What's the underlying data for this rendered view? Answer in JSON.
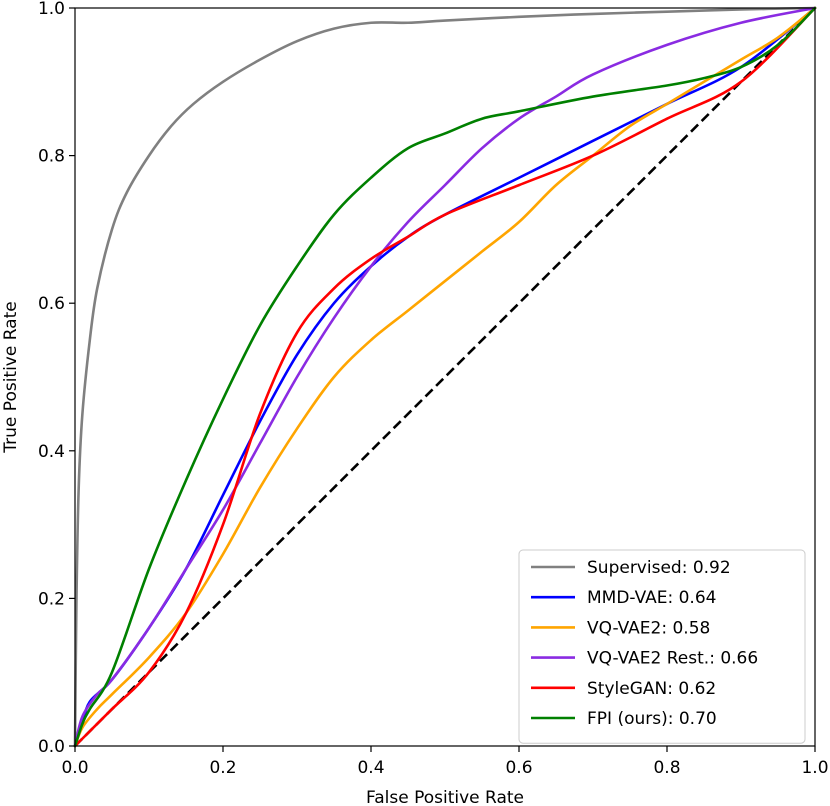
{
  "chart_data": {
    "type": "line",
    "xlabel": "False Positive Rate",
    "ylabel": "True Positive Rate",
    "xlim": [
      0.0,
      1.0
    ],
    "ylim": [
      0.0,
      1.0
    ],
    "x_ticks": [
      "0.0",
      "0.2",
      "0.4",
      "0.6",
      "0.8",
      "1.0"
    ],
    "y_ticks": [
      "0.0",
      "0.2",
      "0.4",
      "0.6",
      "0.8",
      "1.0"
    ],
    "grid": false,
    "legend_position": "bottom-right",
    "series": [
      {
        "name": "Supervised: 0.92",
        "color": "#808080",
        "x": [
          0.0,
          0.002,
          0.005,
          0.01,
          0.02,
          0.03,
          0.05,
          0.07,
          0.1,
          0.13,
          0.16,
          0.2,
          0.25,
          0.3,
          0.35,
          0.4,
          0.45,
          0.5,
          0.6,
          0.7,
          0.8,
          0.9,
          1.0
        ],
        "y": [
          0.0,
          0.2,
          0.35,
          0.45,
          0.55,
          0.62,
          0.7,
          0.75,
          0.8,
          0.84,
          0.87,
          0.9,
          0.93,
          0.955,
          0.972,
          0.98,
          0.98,
          0.983,
          0.988,
          0.992,
          0.995,
          0.998,
          1.0
        ]
      },
      {
        "name": "MMD-VAE: 0.64",
        "color": "#0000ff",
        "x": [
          0.0,
          0.01,
          0.02,
          0.05,
          0.1,
          0.15,
          0.2,
          0.25,
          0.3,
          0.35,
          0.4,
          0.45,
          0.5,
          0.6,
          0.7,
          0.8,
          0.9,
          1.0
        ],
        "y": [
          0.0,
          0.03,
          0.06,
          0.09,
          0.16,
          0.24,
          0.34,
          0.44,
          0.53,
          0.6,
          0.65,
          0.69,
          0.72,
          0.77,
          0.82,
          0.87,
          0.92,
          1.0
        ]
      },
      {
        "name": "VQ-VAE2: 0.58",
        "color": "#ffa500",
        "x": [
          0.0,
          0.01,
          0.03,
          0.05,
          0.1,
          0.15,
          0.2,
          0.25,
          0.3,
          0.35,
          0.4,
          0.45,
          0.5,
          0.55,
          0.6,
          0.65,
          0.7,
          0.75,
          0.8,
          0.85,
          0.9,
          0.95,
          1.0
        ],
        "y": [
          0.0,
          0.025,
          0.05,
          0.07,
          0.12,
          0.18,
          0.26,
          0.35,
          0.43,
          0.5,
          0.55,
          0.59,
          0.63,
          0.67,
          0.71,
          0.76,
          0.8,
          0.84,
          0.87,
          0.9,
          0.93,
          0.96,
          1.0
        ]
      },
      {
        "name": "VQ-VAE2 Rest.: 0.66",
        "color": "#8a2be2",
        "x": [
          0.0,
          0.01,
          0.03,
          0.05,
          0.1,
          0.15,
          0.2,
          0.25,
          0.3,
          0.35,
          0.4,
          0.45,
          0.5,
          0.55,
          0.6,
          0.65,
          0.7,
          0.8,
          0.9,
          1.0
        ],
        "y": [
          0.0,
          0.04,
          0.07,
          0.09,
          0.16,
          0.24,
          0.32,
          0.41,
          0.5,
          0.58,
          0.65,
          0.71,
          0.76,
          0.81,
          0.85,
          0.88,
          0.91,
          0.95,
          0.98,
          1.0
        ]
      },
      {
        "name": "StyleGAN: 0.62",
        "color": "#ff0000",
        "x": [
          0.0,
          0.02,
          0.05,
          0.1,
          0.15,
          0.2,
          0.25,
          0.3,
          0.35,
          0.4,
          0.45,
          0.5,
          0.6,
          0.7,
          0.8,
          0.9,
          1.0
        ],
        "y": [
          0.0,
          0.02,
          0.05,
          0.1,
          0.18,
          0.3,
          0.45,
          0.56,
          0.62,
          0.66,
          0.69,
          0.72,
          0.76,
          0.8,
          0.85,
          0.9,
          1.0
        ]
      },
      {
        "name": "FPI (ours): 0.70",
        "color": "#008000",
        "x": [
          0.0,
          0.01,
          0.02,
          0.05,
          0.1,
          0.15,
          0.2,
          0.25,
          0.3,
          0.35,
          0.4,
          0.45,
          0.5,
          0.55,
          0.6,
          0.7,
          0.8,
          0.85,
          0.9,
          0.95,
          1.0
        ],
        "y": [
          0.0,
          0.03,
          0.05,
          0.1,
          0.24,
          0.36,
          0.47,
          0.57,
          0.65,
          0.72,
          0.77,
          0.81,
          0.83,
          0.85,
          0.86,
          0.88,
          0.895,
          0.905,
          0.92,
          0.95,
          1.0
        ]
      }
    ],
    "reference_line": {
      "x": [
        0.0,
        1.0
      ],
      "y": [
        0.0,
        1.0
      ],
      "color": "#000000",
      "style": "dashed"
    }
  }
}
